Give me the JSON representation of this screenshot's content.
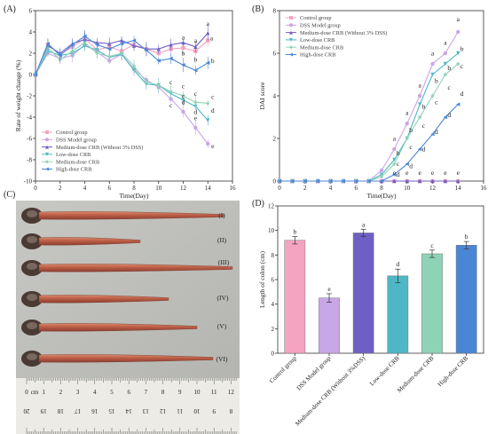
{
  "panels": {
    "a": "(A)",
    "b": "(B)",
    "c": "(C)",
    "d": "(D)"
  },
  "colors": {
    "control": "#f4a3c0",
    "dss": "#c9a6e6",
    "medium_nodss": "#6e5fc4",
    "low": "#4fb7c4",
    "medium": "#8fd3b6",
    "high": "#4a86d6"
  },
  "chart_data": [
    {
      "type": "line",
      "xlabel": "Time(Day)",
      "ylabel": "Rate of weight change (%)",
      "xlim": [
        0,
        16
      ],
      "ylim": [
        -10,
        6
      ],
      "xticks": [
        "0",
        "2",
        "4",
        "6",
        "8",
        "10",
        "12",
        "14",
        "16"
      ],
      "yticks": [
        "-10",
        "-8",
        "-6",
        "-4",
        "-2",
        "0",
        "2",
        "4",
        "6"
      ],
      "legend_position": "bottom-left",
      "x": [
        0,
        1,
        2,
        3,
        4,
        5,
        6,
        7,
        8,
        9,
        10,
        11,
        12,
        13,
        14
      ],
      "series": [
        {
          "name": "Control group",
          "key": "control",
          "marker": "square",
          "values": [
            0,
            2.8,
            1.9,
            2.6,
            3.4,
            2.3,
            2.6,
            2.2,
            2.8,
            2.4,
            2.0,
            2.4,
            2.5,
            2.2,
            3.2
          ]
        },
        {
          "name": "DSS Model group",
          "key": "dss",
          "marker": "circle",
          "values": [
            0,
            2.0,
            1.5,
            1.8,
            2.8,
            2.1,
            1.3,
            1.9,
            0.5,
            -0.5,
            -1.2,
            -2.3,
            -3.5,
            -5.0,
            -6.5
          ]
        },
        {
          "name": "Medium-dose CRB (Without 3% DSS)",
          "key": "medium_nodss",
          "marker": "triangle-up",
          "values": [
            0,
            2.7,
            2.0,
            2.9,
            3.3,
            3.0,
            2.9,
            3.2,
            2.7,
            2.4,
            2.4,
            2.8,
            3.0,
            2.6,
            3.9
          ]
        },
        {
          "name": "Low-dose CRB",
          "key": "low",
          "marker": "triangle-down",
          "values": [
            0,
            2.2,
            1.8,
            2.0,
            2.7,
            2.3,
            1.6,
            1.9,
            0.4,
            -0.9,
            -1.0,
            -1.8,
            -2.4,
            -3.0,
            -4.3
          ]
        },
        {
          "name": "Medium-dose CRB",
          "key": "medium",
          "marker": "diamond",
          "values": [
            0,
            2.5,
            1.4,
            2.2,
            3.0,
            2.0,
            1.7,
            2.0,
            0.8,
            -0.7,
            -1.0,
            -1.6,
            -2.0,
            -2.6,
            -2.7
          ]
        },
        {
          "name": "High-dose CRB",
          "key": "high",
          "marker": "triangle-left",
          "values": [
            0,
            2.9,
            1.8,
            2.8,
            3.6,
            2.8,
            2.4,
            2.9,
            3.2,
            2.3,
            1.3,
            1.5,
            0.9,
            0.4,
            1.1
          ]
        }
      ],
      "annotations": [
        {
          "x": 14,
          "y": 4.6,
          "text": "a"
        },
        {
          "x": 14.3,
          "y": 3.2,
          "text": "a"
        },
        {
          "x": 14.4,
          "y": 1.1,
          "text": "b"
        },
        {
          "x": 14.4,
          "y": -2.3,
          "text": "c"
        },
        {
          "x": 14.4,
          "y": -3.6,
          "text": "d"
        },
        {
          "x": 14.4,
          "y": -6.9,
          "text": "e"
        },
        {
          "x": 12,
          "y": 3.3,
          "text": "a"
        },
        {
          "x": 13,
          "y": 3.0,
          "text": "a"
        },
        {
          "x": 12,
          "y": 1.8,
          "text": "b"
        },
        {
          "x": 13,
          "y": 1.2,
          "text": "b"
        },
        {
          "x": 12,
          "y": -1.3,
          "text": "c"
        },
        {
          "x": 13,
          "y": -2.0,
          "text": "c"
        },
        {
          "x": 11,
          "y": -0.9,
          "text": "c"
        },
        {
          "x": 11,
          "y": -3.1,
          "text": "c"
        },
        {
          "x": 12,
          "y": -2.8,
          "text": "d"
        },
        {
          "x": 13,
          "y": -3.7,
          "text": "d"
        },
        {
          "x": 12,
          "y": -2.2,
          "text": "c"
        },
        {
          "x": 13,
          "y": -4.3,
          "text": "e"
        }
      ]
    },
    {
      "type": "line",
      "xlabel": "Time(Day)",
      "ylabel": "DAI score",
      "xlim": [
        0,
        16
      ],
      "ylim": [
        0,
        8
      ],
      "xticks": [
        "0",
        "2",
        "4",
        "6",
        "8",
        "10",
        "12",
        "14",
        "16"
      ],
      "yticks": [
        "0",
        "2",
        "4",
        "6",
        "8"
      ],
      "legend_position": "top-left",
      "x": [
        0,
        1,
        2,
        3,
        4,
        5,
        6,
        7,
        8,
        9,
        10,
        11,
        12,
        13,
        14
      ],
      "series": [
        {
          "name": "Control group",
          "key": "control",
          "marker": "square",
          "values": [
            0,
            0,
            0,
            0,
            0,
            0,
            0,
            0,
            0,
            0,
            0,
            0,
            0,
            0,
            0
          ]
        },
        {
          "name": "DSS Model group",
          "key": "dss",
          "marker": "circle",
          "values": [
            0,
            0,
            0,
            0,
            0,
            0,
            0,
            0,
            0.5,
            1.5,
            2.7,
            4.0,
            5.5,
            6.0,
            7.0
          ]
        },
        {
          "name": "Medium-dose CRB (Without 3% DSS)",
          "key": "medium_nodss",
          "marker": "triangle-up",
          "values": [
            0,
            0,
            0,
            0,
            0,
            0,
            0,
            0,
            0,
            0,
            0,
            0,
            0,
            0,
            0
          ]
        },
        {
          "name": "Low-dose CRB",
          "key": "low",
          "marker": "triangle-down",
          "values": [
            0,
            0,
            0,
            0,
            0,
            0,
            0,
            0,
            0.3,
            1.0,
            2.0,
            3.6,
            5.0,
            5.5,
            6.0
          ]
        },
        {
          "name": "Medium-dose CRB",
          "key": "medium",
          "marker": "diamond",
          "values": [
            0,
            0,
            0,
            0,
            0,
            0,
            0,
            0,
            0.2,
            0.8,
            2.0,
            3.0,
            4.0,
            5.0,
            5.5
          ]
        },
        {
          "name": "High-dose CRB",
          "key": "high",
          "marker": "triangle-left",
          "values": [
            0,
            0,
            0,
            0,
            0,
            0,
            0,
            0,
            0,
            0.3,
            0.8,
            1.5,
            2.2,
            3.0,
            3.6
          ]
        }
      ],
      "annotations": [
        {
          "x": 14,
          "y": 7.5,
          "text": "a"
        },
        {
          "x": 13,
          "y": 6.4,
          "text": "a"
        },
        {
          "x": 12,
          "y": 5.9,
          "text": "a"
        },
        {
          "x": 11,
          "y": 4.4,
          "text": "a"
        },
        {
          "x": 10,
          "y": 3.1,
          "text": "a"
        },
        {
          "x": 9,
          "y": 1.9,
          "text": "a"
        },
        {
          "x": 14.3,
          "y": 6.1,
          "text": "b"
        },
        {
          "x": 13.3,
          "y": 5.2,
          "text": "b"
        },
        {
          "x": 12.3,
          "y": 4.6,
          "text": "b"
        },
        {
          "x": 11.3,
          "y": 3.4,
          "text": "b"
        },
        {
          "x": 10.3,
          "y": 2.3,
          "text": "b"
        },
        {
          "x": 9.3,
          "y": 1.2,
          "text": "b"
        },
        {
          "x": 14.3,
          "y": 5.3,
          "text": "c"
        },
        {
          "x": 13.3,
          "y": 4.3,
          "text": "c"
        },
        {
          "x": 12.3,
          "y": 3.6,
          "text": "c"
        },
        {
          "x": 11.3,
          "y": 2.5,
          "text": "c"
        },
        {
          "x": 10.3,
          "y": 1.5,
          "text": "c"
        },
        {
          "x": 9.3,
          "y": 0.7,
          "text": "c"
        },
        {
          "x": 14.3,
          "y": 4.0,
          "text": "d"
        },
        {
          "x": 13.3,
          "y": 3.0,
          "text": "d"
        },
        {
          "x": 12.3,
          "y": 2.2,
          "text": "d"
        },
        {
          "x": 11.3,
          "y": 1.4,
          "text": "d"
        },
        {
          "x": 10.3,
          "y": 0.6,
          "text": "d"
        },
        {
          "x": 9.3,
          "y": 0.2,
          "text": "d"
        },
        {
          "x": 14,
          "y": 0.3,
          "text": "e"
        },
        {
          "x": 13,
          "y": 0.3,
          "text": "e"
        },
        {
          "x": 12,
          "y": 0.3,
          "text": "e"
        },
        {
          "x": 11,
          "y": 0.3,
          "text": "e"
        },
        {
          "x": 10,
          "y": 0.3,
          "text": "e"
        },
        {
          "x": 9,
          "y": 0.3,
          "text": "e"
        }
      ]
    },
    {
      "type": "bar",
      "xlabel": "",
      "ylabel": "Length of colon (cm)",
      "ylim": [
        0,
        12
      ],
      "yticks": [
        "0",
        "2",
        "4",
        "6",
        "8",
        "10",
        "12"
      ],
      "categories": [
        "Control group",
        "DSS Model group",
        "Medium-dose CRB (Without 3%DSS)",
        "Low-dose CRB",
        "Medium-dose CRB",
        "High-dose CRB"
      ],
      "keys": [
        "control",
        "dss",
        "medium_nodss",
        "low",
        "medium",
        "high"
      ],
      "values": [
        9.2,
        4.5,
        9.8,
        6.3,
        8.1,
        8.8
      ],
      "errors": [
        0.3,
        0.35,
        0.3,
        0.55,
        0.3,
        0.3
      ],
      "letters": [
        "b",
        "e",
        "a",
        "d",
        "c",
        "b"
      ]
    }
  ],
  "photo": {
    "sample_labels": [
      "(I)",
      "(II)",
      "(III)",
      "(IV)",
      "(V)",
      "(VI)"
    ],
    "ruler_top": [
      "0",
      "1",
      "2",
      "3",
      "4",
      "5",
      "6",
      "7",
      "8",
      "9",
      "10",
      "11",
      "12"
    ],
    "ruler_bottom": [
      "20",
      "19",
      "18",
      "17",
      "16",
      "15",
      "14",
      "13",
      "12",
      "11",
      "10",
      "9",
      "8"
    ],
    "ruler_unit": "cm"
  }
}
